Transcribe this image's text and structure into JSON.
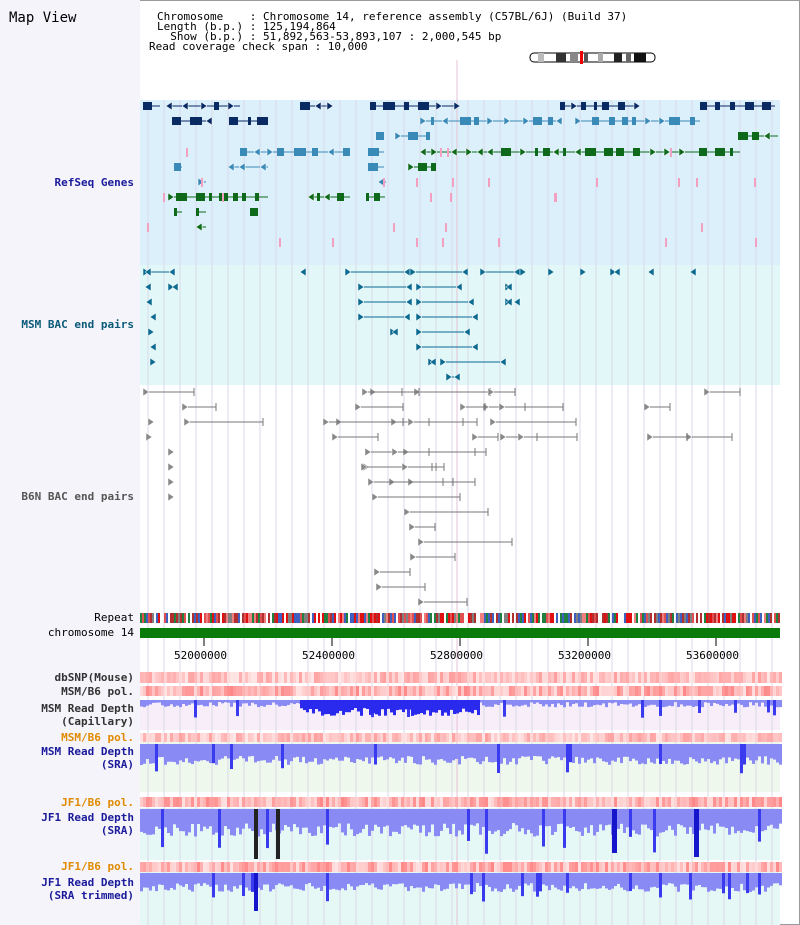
{
  "title": "Map View",
  "info": {
    "line1": "Chromosome    : Chromosome 14, reference assembly (C57BL/6J) (Build 37)",
    "line2": "Length (b.p.) : 125,194,864",
    "line3": "  Show (b.p.) : 51,892,563-53,893,107 : 2,000,545 bp",
    "line4": "Read coverage check span : 10,000"
  },
  "tracks": {
    "refseq": "RefSeq Genes",
    "msm_bac": "MSM BAC end pairs",
    "b6n_bac": "B6N BAC end pairs",
    "repeat": "Repeat",
    "chromosome": "chromosome 14",
    "dbsnp": "dbSNP(Mouse)",
    "msm_b6_pol_1": "MSM/B6 pol.",
    "msm_depth_cap_1": "MSM Read Depth",
    "msm_depth_cap_2": "(Capillary)",
    "msm_b6_pol_2": "MSM/B6 pol.",
    "msm_depth_sra_1": "MSM Read Depth",
    "msm_depth_sra_2": "(SRA)",
    "jf1_b6_pol_1": "JF1/B6 pol.",
    "jf1_depth_sra_1": "JF1 Read Depth",
    "jf1_depth_sra_2": "(SRA)",
    "jf1_b6_pol_2": "JF1/B6 pol.",
    "jf1_depth_trim_1": "JF1 Read Depth",
    "jf1_depth_trim_2": "(SRA trimmed)"
  },
  "axis": {
    "ticks": [
      "52000000",
      "52400000",
      "52800000",
      "53200000",
      "53600000"
    ]
  },
  "colors": {
    "refseq_bg": "#dcf0fb",
    "bac_bg": "#e2f7f7",
    "navy": "#0a2a64",
    "steel": "#3a8ab8",
    "green": "#0e6a1a",
    "pink": "#f4a0c0",
    "chromosome": "#0a7a0a",
    "depth_blue": "#5555ee",
    "depth_light": "#8a8af5"
  }
}
